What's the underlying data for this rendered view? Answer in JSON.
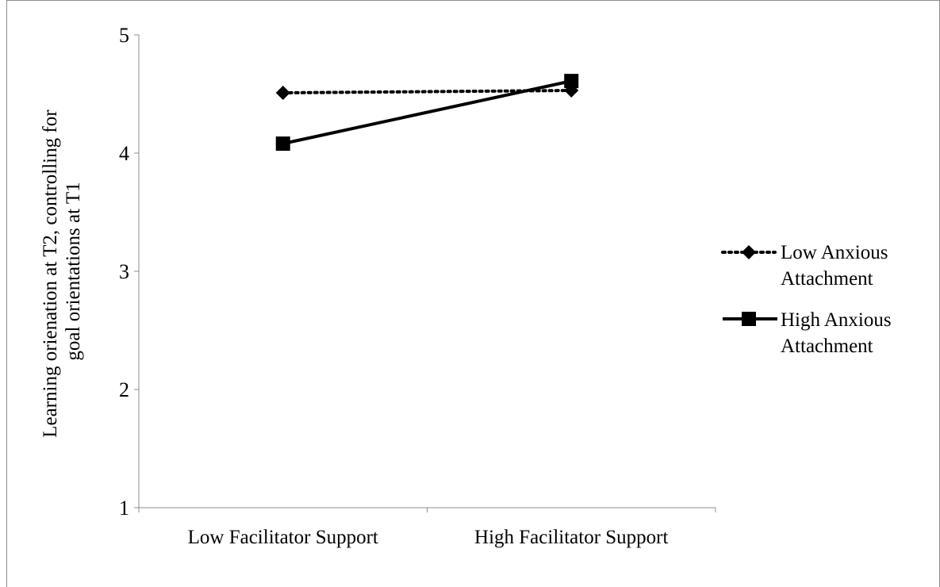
{
  "chart_data": {
    "type": "line",
    "title": "",
    "xlabel": "",
    "ylabel_lines": [
      "Learning orienation at T2, controlling for",
      "goal orientations at T1"
    ],
    "ylim": [
      1,
      5
    ],
    "yticks": [
      "1",
      "2",
      "3",
      "4",
      "5"
    ],
    "categories": [
      "Low Facilitator Support",
      "High Facilitator Support"
    ],
    "grid": false,
    "legend_position": "right",
    "series": [
      {
        "name_lines": [
          "Low Anxious",
          "Attachment"
        ],
        "values": [
          4.51,
          4.53
        ],
        "marker": "diamond",
        "line_style": "dotted",
        "color": "#000000"
      },
      {
        "name_lines": [
          "High Anxious",
          "Attachment"
        ],
        "values": [
          4.08,
          4.61
        ],
        "marker": "square",
        "line_style": "solid",
        "color": "#000000"
      }
    ]
  }
}
